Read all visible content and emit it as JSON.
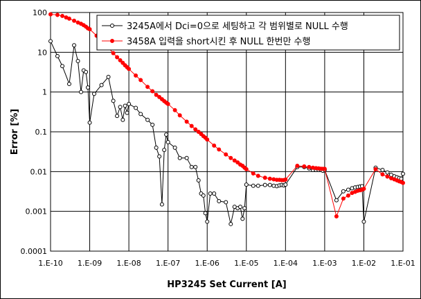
{
  "chart_data": {
    "type": "scatter",
    "xlabel": "HP3245 Set Current [A]",
    "ylabel": "Error [%]",
    "x_scale": "log",
    "y_scale": "log",
    "xlim": [
      1e-10,
      0.1
    ],
    "ylim": [
      0.0001,
      100
    ],
    "x_tick_values": [
      1e-10,
      1e-09,
      1e-08,
      1e-07,
      1e-06,
      1e-05,
      0.0001,
      0.001,
      0.01,
      0.1
    ],
    "x_tick_labels": [
      "1.E-10",
      "1.E-09",
      "1.E-08",
      "1.E-07",
      "1.E-06",
      "1.E-05",
      "1.E-04",
      "1.E-03",
      "1.E-02",
      "1.E-01"
    ],
    "y_tick_values": [
      0.0001,
      0.001,
      0.01,
      0.1,
      1,
      10,
      100
    ],
    "y_tick_labels": [
      "0.0001",
      "0.001",
      "0.01",
      "0.1",
      "1",
      "10",
      "100"
    ],
    "grid": true,
    "legend_position": "top-right",
    "series": [
      {
        "name": "3245A에서 Dci=0으로 세팅하고 각 범위별로 NULL 수행",
        "color": "#000000",
        "marker": "open-circle",
        "points": [
          [
            1e-10,
            19
          ],
          [
            1.5e-10,
            8
          ],
          [
            2e-10,
            4.5
          ],
          [
            3e-10,
            1.6
          ],
          [
            4e-10,
            15
          ],
          [
            5e-10,
            6
          ],
          [
            6e-10,
            1
          ],
          [
            7e-10,
            3.5
          ],
          [
            8e-10,
            3.2
          ],
          [
            9e-10,
            1.3
          ],
          [
            1e-09,
            0.17
          ],
          [
            1.3e-09,
            0.9
          ],
          [
            2e-09,
            1.5
          ],
          [
            3e-09,
            2.4
          ],
          [
            4e-09,
            0.6
          ],
          [
            5e-09,
            0.25
          ],
          [
            6e-09,
            0.42
          ],
          [
            7e-09,
            0.2
          ],
          [
            8e-09,
            0.45
          ],
          [
            9e-09,
            0.3
          ],
          [
            1e-08,
            0.5
          ],
          [
            1.5e-08,
            0.4
          ],
          [
            2e-08,
            0.28
          ],
          [
            3e-08,
            0.2
          ],
          [
            4e-08,
            0.15
          ],
          [
            5e-08,
            0.04
          ],
          [
            6e-08,
            0.024
          ],
          [
            7e-08,
            0.0015
          ],
          [
            8e-08,
            0.035
          ],
          [
            9e-08,
            0.085
          ],
          [
            1e-07,
            0.055
          ],
          [
            1.5e-07,
            0.04
          ],
          [
            2e-07,
            0.022
          ],
          [
            3e-07,
            0.022
          ],
          [
            4e-07,
            0.013
          ],
          [
            5e-07,
            0.013
          ],
          [
            6e-07,
            0.006
          ],
          [
            7e-07,
            0.0028
          ],
          [
            8e-07,
            0.0025
          ],
          [
            9e-07,
            0.0009
          ],
          [
            1e-06,
            0.00055
          ],
          [
            1.2e-06,
            0.0028
          ],
          [
            1.5e-06,
            0.0028
          ],
          [
            2e-06,
            0.0018
          ],
          [
            3e-06,
            0.0017
          ],
          [
            4e-06,
            0.00048
          ],
          [
            5e-06,
            0.0013
          ],
          [
            6e-06,
            0.0012
          ],
          [
            7e-06,
            0.0013
          ],
          [
            8e-06,
            0.00065
          ],
          [
            9e-06,
            0.0012
          ],
          [
            1e-05,
            0.0047
          ],
          [
            1.5e-05,
            0.0044
          ],
          [
            2e-05,
            0.0044
          ],
          [
            3e-05,
            0.0046
          ],
          [
            4e-05,
            0.0046
          ],
          [
            5e-05,
            0.0044
          ],
          [
            6e-05,
            0.0043
          ],
          [
            7e-05,
            0.0045
          ],
          [
            8e-05,
            0.0046
          ],
          [
            9e-05,
            0.0045
          ],
          [
            0.0001,
            0.0047
          ],
          [
            0.0002,
            0.013
          ],
          [
            0.0003,
            0.013
          ],
          [
            0.0004,
            0.012
          ],
          [
            0.0005,
            0.011
          ],
          [
            0.0006,
            0.011
          ],
          [
            0.0007,
            0.011
          ],
          [
            0.0008,
            0.011
          ],
          [
            0.0009,
            0.0105
          ],
          [
            0.001,
            0.011
          ],
          [
            0.002,
            0.0019
          ],
          [
            0.003,
            0.0032
          ],
          [
            0.004,
            0.0035
          ],
          [
            0.005,
            0.0038
          ],
          [
            0.006,
            0.004
          ],
          [
            0.007,
            0.0041
          ],
          [
            0.008,
            0.0042
          ],
          [
            0.009,
            0.0043
          ],
          [
            0.01,
            0.00055
          ],
          [
            0.02,
            0.0125
          ],
          [
            0.03,
            0.011
          ],
          [
            0.04,
            0.0095
          ],
          [
            0.05,
            0.0083
          ],
          [
            0.06,
            0.0076
          ],
          [
            0.07,
            0.0072
          ],
          [
            0.08,
            0.0069
          ],
          [
            0.09,
            0.0066
          ],
          [
            0.1,
            0.0088
          ]
        ]
      },
      {
        "name": "3458A 입력을 short시킨 후 NULL 한번만 수행",
        "color": "#ff0000",
        "marker": "filled-circle",
        "points": [
          [
            1e-10,
            90
          ],
          [
            1.5e-10,
            87
          ],
          [
            2e-10,
            82
          ],
          [
            2.5e-10,
            75
          ],
          [
            3e-10,
            70
          ],
          [
            4e-10,
            62
          ],
          [
            5e-10,
            56
          ],
          [
            6e-10,
            52
          ],
          [
            7e-10,
            48
          ],
          [
            8e-10,
            44
          ],
          [
            9e-10,
            40
          ],
          [
            1e-09,
            38
          ],
          [
            1.5e-09,
            26
          ],
          [
            2e-09,
            20
          ],
          [
            2.5e-09,
            16
          ],
          [
            3e-09,
            13
          ],
          [
            4e-09,
            9.5
          ],
          [
            5e-09,
            7.5
          ],
          [
            6e-09,
            6.3
          ],
          [
            7e-09,
            5.4
          ],
          [
            8e-09,
            4.7
          ],
          [
            9e-09,
            4.2
          ],
          [
            1e-08,
            3.8
          ],
          [
            1.5e-08,
            2.6
          ],
          [
            2e-08,
            2.0
          ],
          [
            3e-08,
            1.35
          ],
          [
            4e-08,
            1.05
          ],
          [
            5e-08,
            0.85
          ],
          [
            6e-08,
            0.75
          ],
          [
            7e-08,
            0.66
          ],
          [
            8e-08,
            0.59
          ],
          [
            9e-08,
            0.54
          ],
          [
            1e-07,
            0.5
          ],
          [
            1.5e-07,
            0.35
          ],
          [
            2e-07,
            0.26
          ],
          [
            3e-07,
            0.18
          ],
          [
            4e-07,
            0.14
          ],
          [
            5e-07,
            0.115
          ],
          [
            6e-07,
            0.1
          ],
          [
            7e-07,
            0.088
          ],
          [
            8e-07,
            0.078
          ],
          [
            9e-07,
            0.071
          ],
          [
            1e-06,
            0.064
          ],
          [
            1.5e-06,
            0.045
          ],
          [
            2e-06,
            0.036
          ],
          [
            3e-06,
            0.027
          ],
          [
            4e-06,
            0.022
          ],
          [
            5e-06,
            0.019
          ],
          [
            6e-06,
            0.017
          ],
          [
            7e-06,
            0.015
          ],
          [
            8e-06,
            0.014
          ],
          [
            9e-06,
            0.0125
          ],
          [
            1e-05,
            0.0115
          ],
          [
            1.5e-05,
            0.009
          ],
          [
            2e-05,
            0.0078
          ],
          [
            3e-05,
            0.007
          ],
          [
            4e-05,
            0.0066
          ],
          [
            5e-05,
            0.0064
          ],
          [
            6e-05,
            0.0062
          ],
          [
            7e-05,
            0.0062
          ],
          [
            8e-05,
            0.0061
          ],
          [
            9e-05,
            0.0061
          ],
          [
            0.0001,
            0.0063
          ],
          [
            0.0002,
            0.014
          ],
          [
            0.0003,
            0.0135
          ],
          [
            0.0004,
            0.013
          ],
          [
            0.0005,
            0.0125
          ],
          [
            0.0006,
            0.0122
          ],
          [
            0.0007,
            0.012
          ],
          [
            0.0008,
            0.0118
          ],
          [
            0.0009,
            0.0117
          ],
          [
            0.001,
            0.0117
          ],
          [
            0.002,
            0.00075
          ],
          [
            0.003,
            0.0021
          ],
          [
            0.004,
            0.0025
          ],
          [
            0.005,
            0.0029
          ],
          [
            0.006,
            0.0031
          ],
          [
            0.007,
            0.0033
          ],
          [
            0.008,
            0.0034
          ],
          [
            0.009,
            0.0035
          ],
          [
            0.01,
            0.0037
          ],
          [
            0.02,
            0.0115
          ],
          [
            0.03,
            0.0085
          ],
          [
            0.04,
            0.0075
          ],
          [
            0.05,
            0.0068
          ],
          [
            0.06,
            0.0064
          ],
          [
            0.07,
            0.006
          ],
          [
            0.08,
            0.0057
          ],
          [
            0.09,
            0.0055
          ],
          [
            0.1,
            0.0052
          ]
        ]
      }
    ]
  }
}
